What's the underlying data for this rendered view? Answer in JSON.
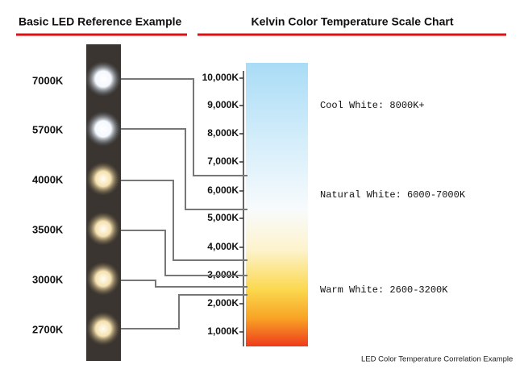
{
  "headers": {
    "left": "Basic LED Reference Example",
    "right": "Kelvin Color Temperature Scale Chart"
  },
  "led_labels": [
    "7000K",
    "5700K",
    "4000K",
    "3500K",
    "3000K",
    "2700K"
  ],
  "scale_labels": [
    "10,000K",
    "9,000K",
    "8,000K",
    "7,000K",
    "6,000K",
    "5,000K",
    "4,000K",
    "3,000K",
    "2,000K",
    "1,000K"
  ],
  "annotations": [
    "Cool White: 8000K+",
    "Natural White: 6000-7000K",
    "Warm White: 2600-3200K"
  ],
  "footer": "LED Color Temperature Correlation Example"
}
